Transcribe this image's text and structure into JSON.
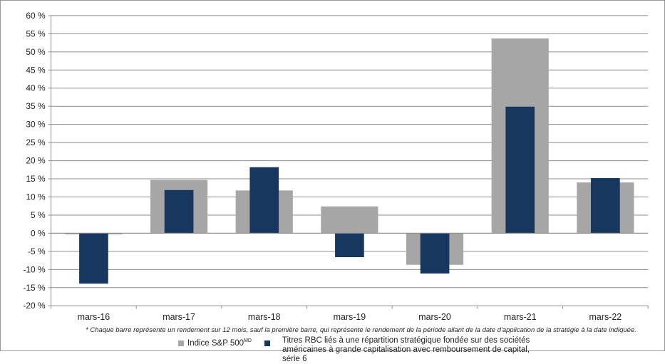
{
  "chart_data": {
    "type": "bar",
    "categories": [
      "mars-16",
      "mars-17",
      "mars-18",
      "mars-19",
      "mars-20",
      "mars-21",
      "mars-22"
    ],
    "series": [
      {
        "name": "Indice S&P 500MD",
        "color": "#a6a6a6",
        "values": [
          -0.3,
          14.7,
          11.8,
          7.4,
          -8.7,
          53.7,
          14.0
        ]
      },
      {
        "name": "Titres RBC liés à une répartition stratégique fondée sur des sociétés américaines à grande capitalisation avec remboursement de capital, série 6",
        "color": "#17375e",
        "values": [
          -13.9,
          11.9,
          18.2,
          -6.6,
          -11.1,
          34.9,
          15.2
        ]
      }
    ],
    "ylim": [
      -20,
      60
    ],
    "yticks": [
      -20,
      -15,
      -10,
      -5,
      0,
      5,
      10,
      15,
      20,
      25,
      30,
      35,
      40,
      45,
      50,
      55,
      60
    ],
    "ytick_labels": [
      "-20 %",
      "-15 %",
      "-10 %",
      "-5 %",
      "0 %",
      "5 %",
      "10 %",
      "15 %",
      "20 %",
      "25 %",
      "30 %",
      "35 %",
      "40 %",
      "45 %",
      "50 %",
      "55 %",
      "60 %"
    ],
    "grid": true,
    "legend_position": "bottom"
  },
  "footnote": "* Chaque barre représente un rendement sur 12 mois, sauf la première barre, qui représente le rendement de la période allant de la date d'application de la stratégie à la date indiquée.",
  "legend": {
    "sp500_main": "Indice S&P 500",
    "sp500_sup": "MD",
    "rbc": "Titres RBC liés à une répartition stratégique fondée sur des sociétés américaines à grande capitalisation avec remboursement de capital, série 6"
  }
}
